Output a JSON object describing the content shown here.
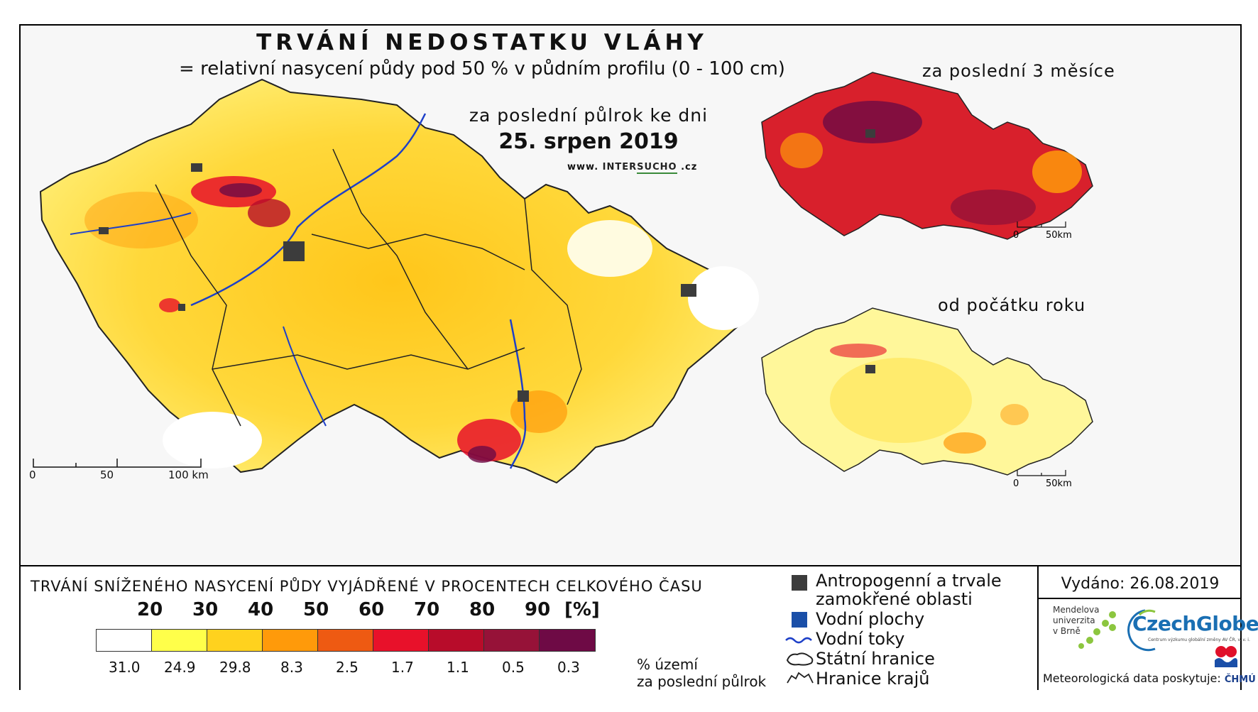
{
  "title": "TRVÁNÍ NEDOSTATKU VLÁHY",
  "subtitle": "= relativní nasycení půdy pod 50 % v půdním profilu (0 - 100 cm)",
  "main_map": {
    "period_label": "za poslední půlrok ke dni",
    "date": "25. srpen 2019",
    "website_prefix": "www.",
    "website_brand_a": "INTER",
    "website_brand_b": "SUCHO",
    "website_suffix": ".cz",
    "scale_ticks": [
      "0",
      "50",
      "100 km"
    ]
  },
  "inset_top": {
    "label": "za poslední 3 měsíce",
    "scale_ticks": [
      "0",
      "50km"
    ]
  },
  "inset_bottom": {
    "label": "od počátku roku",
    "scale_ticks": [
      "0",
      "50km"
    ]
  },
  "legend": {
    "title": "TRVÁNÍ SNÍŽENÉHO NASYCENÍ PŮDY VYJÁDŘENÉ V PROCENTECH CELKOVÉHO ČASU",
    "class_labels": [
      "20",
      "30",
      "40",
      "50",
      "60",
      "70",
      "80",
      "90",
      "[%]"
    ],
    "swatch_colors": [
      "#ffffff",
      "#ffff4a",
      "#ffd21e",
      "#ff9a0a",
      "#ee5a12",
      "#e8112a",
      "#b80c2a",
      "#961238",
      "#6e0a45"
    ],
    "percentages": [
      "31.0",
      "24.9",
      "29.8",
      "8.3",
      "2.5",
      "1.7",
      "1.1",
      "0.5",
      "0.3"
    ],
    "percent_note_line1": "% území",
    "percent_note_line2": "za poslední půlrok"
  },
  "symbols": {
    "anthropogenic_line1": "Antropogenní a trvale",
    "anthropogenic_line2": "zamokřené oblasti",
    "water_bodies": "Vodní plochy",
    "rivers": "Vodní toky",
    "state_border": "Státní hranice",
    "regional_border": "Hranice krajů",
    "anthropogenic_color": "#3c3c3c",
    "water_color": "#1a4fa8",
    "river_color": "#1e40c8"
  },
  "issued": {
    "text": "Vydáno: 26.08.2019",
    "mendel_lines": [
      "Mendelova",
      "univerzita",
      "v Brně"
    ],
    "czechglobe": "CzechGlobe",
    "czechglobe_sub": "Centrum výzkumu globální změny AV ČR, v. v. i.",
    "meteo": "Meteorologická data poskytuje:",
    "chmu": "ČHMÚ"
  }
}
